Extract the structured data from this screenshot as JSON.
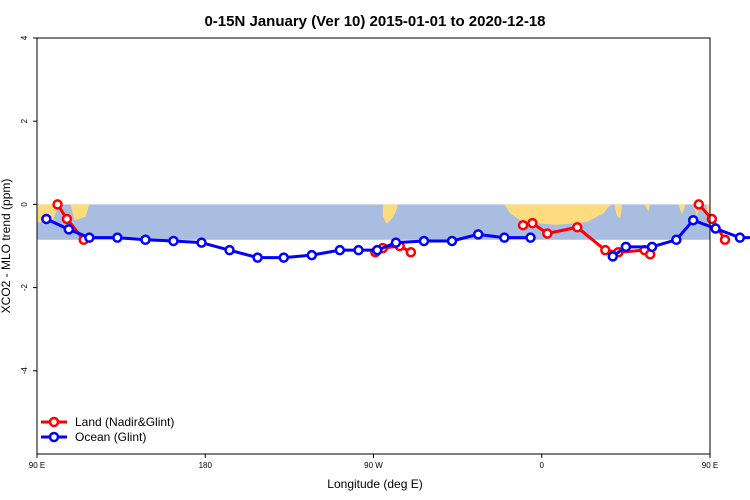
{
  "chart_data": {
    "type": "line",
    "title": "0-15N January (Ver 10)   2015-01-01 to 2020-12-18",
    "xlabel": "Longitude (deg E)",
    "ylabel": "XCO2 - MLO trend (ppm)",
    "xlim": [
      90,
      450
    ],
    "ylim": [
      -6,
      4
    ],
    "x_ticks": [
      {
        "value": 90,
        "label": "90 E"
      },
      {
        "value": 180,
        "label": "180"
      },
      {
        "value": 270,
        "label": "90 W"
      },
      {
        "value": 360,
        "label": "0"
      },
      {
        "value": 450,
        "label": "90 E"
      },
      {
        "value": 540,
        "label": "180"
      }
    ],
    "y_ticks": [
      {
        "value": 4,
        "label": "4"
      },
      {
        "value": 2,
        "label": "2"
      },
      {
        "value": 0,
        "label": "0"
      },
      {
        "value": -2,
        "label": "-2"
      },
      {
        "value": -4,
        "label": "-4"
      }
    ],
    "band": {
      "ymin": -0.85,
      "ymax": 0.0,
      "color": "#a8bde0",
      "land_color": "#fddc80"
    },
    "series": [
      {
        "name": "Land (Nadir&Glint)",
        "color": "#ff0000",
        "segments": [
          {
            "x": [
              101,
              106,
              115
            ],
            "y": [
              0.0,
              -0.35,
              -0.85
            ]
          },
          {
            "x": [
              271,
              275,
              284,
              290
            ],
            "y": [
              -1.15,
              -1.05,
              -1.0,
              -1.15
            ]
          },
          {
            "x": [
              350,
              355,
              363,
              379,
              394,
              401,
              415,
              418
            ],
            "y": [
              -0.5,
              -0.45,
              -0.7,
              -0.55,
              -1.1,
              -1.15,
              -1.1,
              -1.2
            ]
          },
          {
            "x": [
              444,
              451,
              458
            ],
            "y": [
              0.0,
              -0.35,
              -0.85
            ]
          }
        ]
      },
      {
        "name": "Ocean (Glint)",
        "color": "#0000ff",
        "segments": [
          {
            "x": [
              95,
              107,
              118,
              133,
              148,
              163,
              178,
              193,
              208,
              222,
              237,
              252,
              262,
              272,
              282,
              297,
              312,
              326,
              340,
              354
            ],
            "y": [
              -0.35,
              -0.6,
              -0.8,
              -0.8,
              -0.85,
              -0.88,
              -0.92,
              -1.1,
              -1.28,
              -1.28,
              -1.22,
              -1.1,
              -1.1,
              -1.1,
              -0.92,
              -0.88,
              -0.88,
              -0.72,
              -0.8,
              -0.8
            ]
          },
          {
            "x": [
              398,
              405,
              419,
              432,
              441,
              453,
              466,
              481,
              496,
              510
            ],
            "y": [
              -1.25,
              -1.02,
              -1.02,
              -0.85,
              -0.38,
              -0.58,
              -0.8,
              -0.8,
              -0.85,
              -0.88
            ]
          }
        ]
      }
    ],
    "legend_position": "bottom-left"
  }
}
